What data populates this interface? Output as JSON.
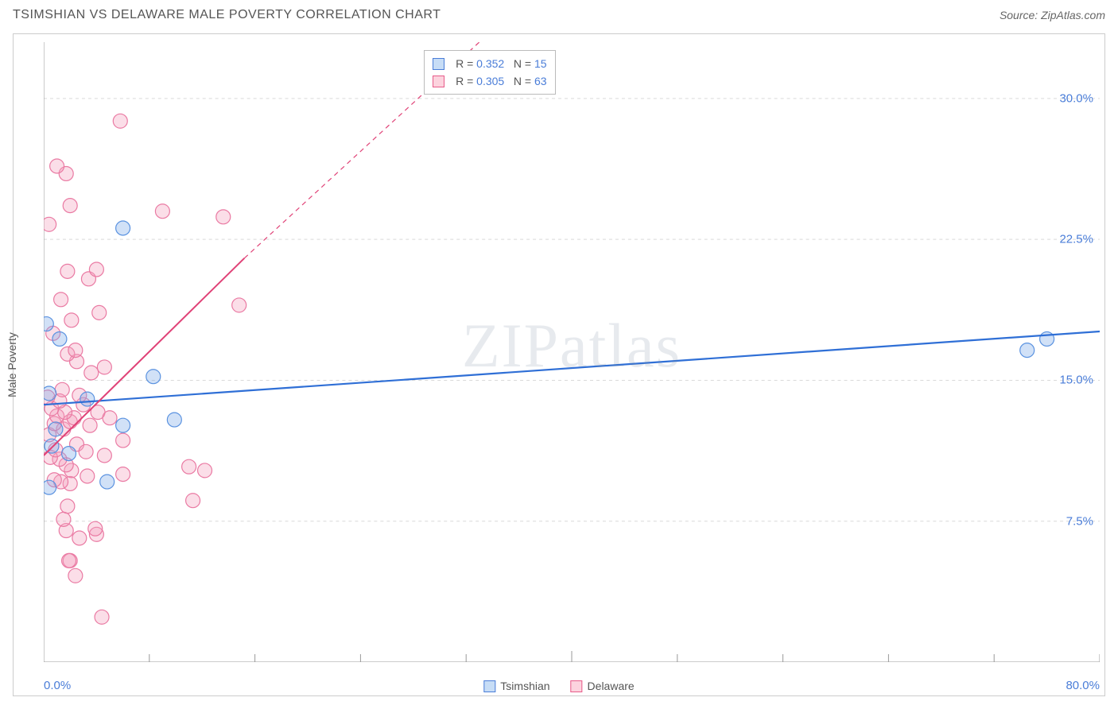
{
  "header": {
    "title": "TSIMSHIAN VS DELAWARE MALE POVERTY CORRELATION CHART",
    "source_prefix": "Source: ",
    "source": "ZipAtlas.com"
  },
  "watermark": {
    "zip": "ZIP",
    "atlas": "atlas"
  },
  "axes": {
    "ylabel": "Male Poverty",
    "xlim": [
      0,
      80
    ],
    "ylim": [
      0,
      33
    ],
    "x_ticks_major": [
      0,
      80
    ],
    "x_tick_labels": [
      "0.0%",
      "80.0%"
    ],
    "x_minor_step": 8,
    "y_ticks": [
      7.5,
      15.0,
      22.5,
      30.0
    ],
    "y_tick_labels": [
      "7.5%",
      "15.0%",
      "22.5%",
      "30.0%"
    ],
    "grid_color": "#d9d9d9",
    "axis_color": "#999999"
  },
  "legend_bottom": {
    "items": [
      {
        "label": "Tsimshian",
        "fill": "#c7ddf6",
        "stroke": "#4a7dd8"
      },
      {
        "label": "Delaware",
        "fill": "#fcd3de",
        "stroke": "#e75c8a"
      }
    ]
  },
  "legend_box": {
    "left_pct": 36,
    "rows": [
      {
        "swatch_fill": "#c7ddf6",
        "swatch_stroke": "#4a7dd8",
        "r_label": "R = ",
        "r": "0.352",
        "n_label": "   N = ",
        "n": "15"
      },
      {
        "swatch_fill": "#fcd3de",
        "swatch_stroke": "#e75c8a",
        "r_label": "R = ",
        "r": "0.305",
        "n_label": "   N = ",
        "n": "63"
      }
    ]
  },
  "series": {
    "tsimshian": {
      "color_fill": "rgba(122,168,232,0.35)",
      "color_stroke": "#5a92e0",
      "marker_r": 9,
      "points": [
        [
          0.4,
          9.3
        ],
        [
          4.8,
          9.6
        ],
        [
          1.9,
          11.1
        ],
        [
          0.6,
          11.5
        ],
        [
          0.9,
          12.4
        ],
        [
          6.0,
          12.6
        ],
        [
          9.9,
          12.9
        ],
        [
          0.4,
          14.3
        ],
        [
          8.3,
          15.2
        ],
        [
          1.2,
          17.2
        ],
        [
          74.5,
          16.6
        ],
        [
          76.0,
          17.2
        ],
        [
          0.2,
          18.0
        ],
        [
          6.0,
          23.1
        ],
        [
          3.3,
          14.0
        ]
      ],
      "trend": {
        "x1": 0,
        "y1": 13.7,
        "x2": 80,
        "y2": 17.6,
        "color": "#2f6fd6",
        "width": 2.2,
        "dash_after_x": null
      }
    },
    "delaware": {
      "color_fill": "rgba(244,160,190,0.35)",
      "color_stroke": "#ea7aa3",
      "marker_r": 9,
      "points": [
        [
          4.4,
          2.4
        ],
        [
          2.4,
          4.6
        ],
        [
          2.0,
          5.4
        ],
        [
          1.9,
          5.4
        ],
        [
          2.7,
          6.6
        ],
        [
          4.0,
          6.8
        ],
        [
          1.7,
          7.0
        ],
        [
          3.9,
          7.1
        ],
        [
          1.5,
          7.6
        ],
        [
          1.8,
          8.3
        ],
        [
          11.3,
          8.6
        ],
        [
          2.0,
          9.5
        ],
        [
          1.3,
          9.6
        ],
        [
          0.8,
          9.7
        ],
        [
          3.3,
          9.9
        ],
        [
          6.0,
          10.0
        ],
        [
          12.2,
          10.2
        ],
        [
          2.1,
          10.2
        ],
        [
          11.0,
          10.4
        ],
        [
          1.7,
          10.5
        ],
        [
          1.2,
          10.8
        ],
        [
          0.5,
          10.9
        ],
        [
          4.6,
          11.0
        ],
        [
          0.9,
          11.3
        ],
        [
          2.5,
          11.6
        ],
        [
          6.0,
          11.8
        ],
        [
          0.4,
          12.1
        ],
        [
          1.5,
          12.4
        ],
        [
          3.5,
          12.6
        ],
        [
          0.8,
          12.7
        ],
        [
          2.0,
          12.8
        ],
        [
          2.3,
          13.0
        ],
        [
          1.0,
          13.1
        ],
        [
          1.6,
          13.3
        ],
        [
          4.1,
          13.3
        ],
        [
          0.6,
          13.5
        ],
        [
          3.0,
          13.7
        ],
        [
          1.2,
          13.9
        ],
        [
          0.3,
          14.1
        ],
        [
          2.7,
          14.2
        ],
        [
          1.4,
          14.5
        ],
        [
          3.6,
          15.4
        ],
        [
          4.6,
          15.7
        ],
        [
          2.5,
          16.0
        ],
        [
          1.8,
          16.4
        ],
        [
          2.4,
          16.6
        ],
        [
          0.7,
          17.5
        ],
        [
          2.1,
          18.2
        ],
        [
          4.2,
          18.6
        ],
        [
          14.8,
          19.0
        ],
        [
          1.3,
          19.3
        ],
        [
          3.4,
          20.4
        ],
        [
          1.8,
          20.8
        ],
        [
          4.0,
          20.9
        ],
        [
          0.4,
          23.3
        ],
        [
          13.6,
          23.7
        ],
        [
          9.0,
          24.0
        ],
        [
          2.0,
          24.3
        ],
        [
          1.7,
          26.0
        ],
        [
          1.0,
          26.4
        ],
        [
          5.8,
          28.8
        ],
        [
          5.0,
          13.0
        ],
        [
          3.2,
          11.2
        ]
      ],
      "trend": {
        "x1": 0,
        "y1": 11.0,
        "x2_solid": 15.2,
        "y2_solid": 21.5,
        "x2": 33.0,
        "y2": 33.0,
        "color": "#e04277",
        "width": 2.0
      }
    }
  }
}
